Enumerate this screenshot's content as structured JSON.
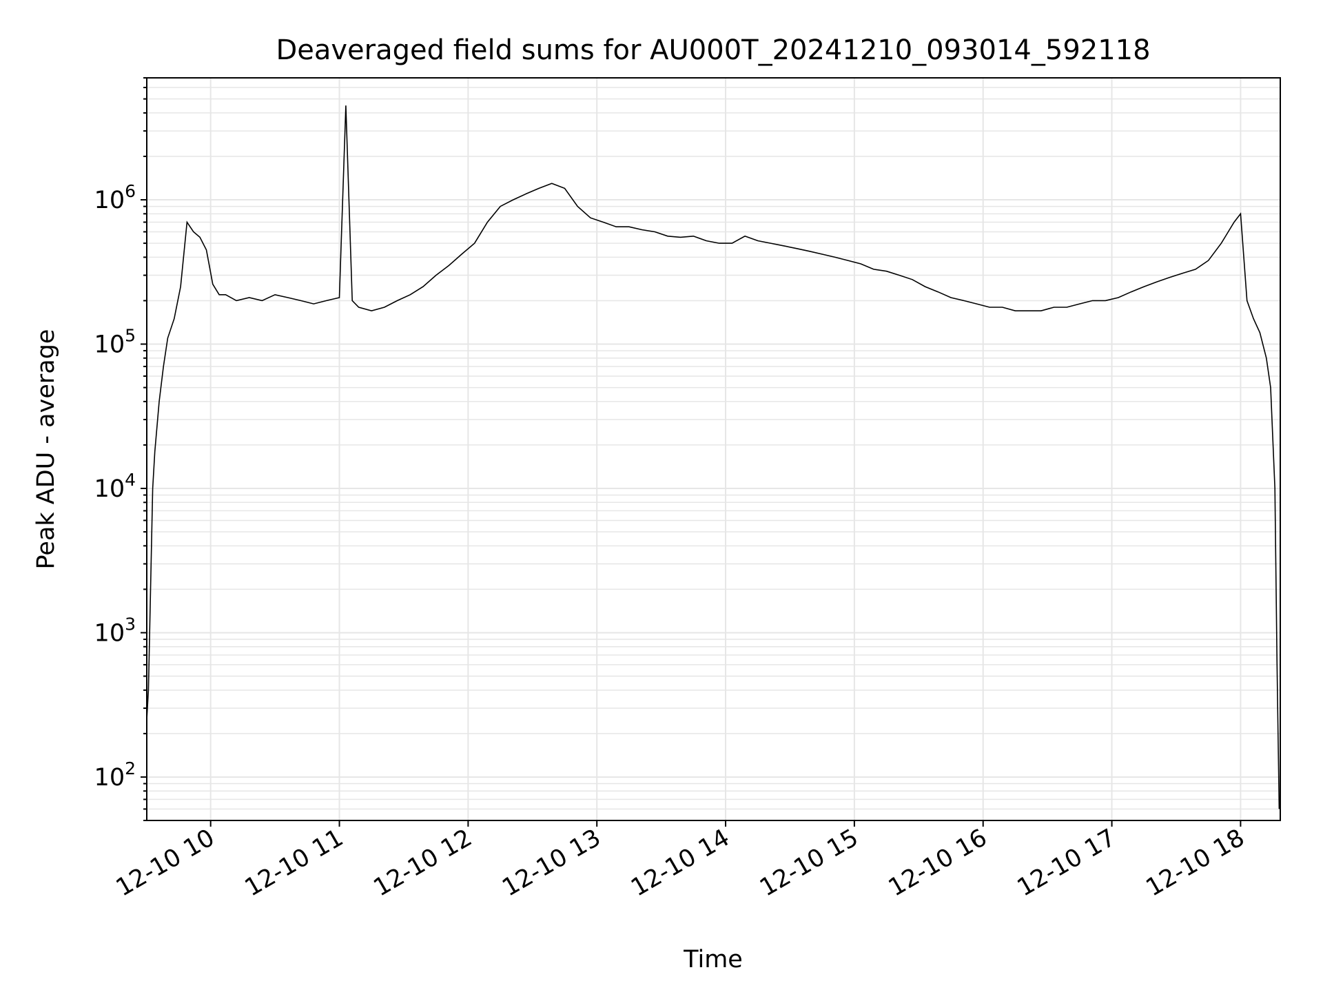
{
  "chart_data": {
    "type": "line",
    "title": "Deaveraged field sums for AU000T_20241210_093014_592118",
    "xlabel": "Time",
    "ylabel": "Peak ADU - average",
    "yscale": "log",
    "ylim": [
      50,
      7000000
    ],
    "xlim": [
      "2024-12-10 09:30:14",
      "2024-12-10 18:18:30"
    ],
    "grid": "major and minor",
    "x_tick_labels": [
      "12-10 10",
      "12-10 11",
      "12-10 12",
      "12-10 13",
      "12-10 14",
      "12-10 15",
      "12-10 16",
      "12-10 17",
      "12-10 18"
    ],
    "x_tick_times": [
      "2024-12-10 10:00",
      "2024-12-10 11:00",
      "2024-12-10 12:00",
      "2024-12-10 13:00",
      "2024-12-10 14:00",
      "2024-12-10 15:00",
      "2024-12-10 16:00",
      "2024-12-10 17:00",
      "2024-12-10 18:00"
    ],
    "y_ticks": [
      {
        "value": 100,
        "base": "10",
        "exp": "2"
      },
      {
        "value": 1000,
        "base": "10",
        "exp": "3"
      },
      {
        "value": 10000,
        "base": "10",
        "exp": "4"
      },
      {
        "value": 100000,
        "base": "10",
        "exp": "5"
      },
      {
        "value": 1000000,
        "base": "10",
        "exp": "6"
      }
    ],
    "series": [
      {
        "color": "#000000",
        "x": [
          "2024-12-10 09:30:14",
          "2024-12-10 09:31:00",
          "2024-12-10 09:32:00",
          "2024-12-10 09:33:00",
          "2024-12-10 09:34:00",
          "2024-12-10 09:36:00",
          "2024-12-10 09:38:00",
          "2024-12-10 09:40:00",
          "2024-12-10 09:43:00",
          "2024-12-10 09:46:00",
          "2024-12-10 09:49:00",
          "2024-12-10 09:52:00",
          "2024-12-10 09:55:00",
          "2024-12-10 09:58:00",
          "2024-12-10 10:01:00",
          "2024-12-10 10:04:00",
          "2024-12-10 10:07:00",
          "2024-12-10 10:12:00",
          "2024-12-10 10:18:00",
          "2024-12-10 10:24:00",
          "2024-12-10 10:30:00",
          "2024-12-10 10:36:00",
          "2024-12-10 10:42:00",
          "2024-12-10 10:48:00",
          "2024-12-10 10:54:00",
          "2024-12-10 11:00:00",
          "2024-12-10 11:03:00",
          "2024-12-10 11:06:00",
          "2024-12-10 11:09:00",
          "2024-12-10 11:15:00",
          "2024-12-10 11:21:00",
          "2024-12-10 11:27:00",
          "2024-12-10 11:33:00",
          "2024-12-10 11:39:00",
          "2024-12-10 11:45:00",
          "2024-12-10 11:51:00",
          "2024-12-10 11:57:00",
          "2024-12-10 12:03:00",
          "2024-12-10 12:09:00",
          "2024-12-10 12:15:00",
          "2024-12-10 12:21:00",
          "2024-12-10 12:27:00",
          "2024-12-10 12:33:00",
          "2024-12-10 12:39:00",
          "2024-12-10 12:45:00",
          "2024-12-10 12:51:00",
          "2024-12-10 12:57:00",
          "2024-12-10 13:03:00",
          "2024-12-10 13:09:00",
          "2024-12-10 13:15:00",
          "2024-12-10 13:21:00",
          "2024-12-10 13:27:00",
          "2024-12-10 13:33:00",
          "2024-12-10 13:39:00",
          "2024-12-10 13:45:00",
          "2024-12-10 13:51:00",
          "2024-12-10 13:57:00",
          "2024-12-10 14:03:00",
          "2024-12-10 14:09:00",
          "2024-12-10 14:15:00",
          "2024-12-10 14:21:00",
          "2024-12-10 14:27:00",
          "2024-12-10 14:33:00",
          "2024-12-10 14:39:00",
          "2024-12-10 14:45:00",
          "2024-12-10 14:51:00",
          "2024-12-10 14:57:00",
          "2024-12-10 15:03:00",
          "2024-12-10 15:09:00",
          "2024-12-10 15:15:00",
          "2024-12-10 15:21:00",
          "2024-12-10 15:27:00",
          "2024-12-10 15:33:00",
          "2024-12-10 15:39:00",
          "2024-12-10 15:45:00",
          "2024-12-10 15:51:00",
          "2024-12-10 15:57:00",
          "2024-12-10 16:03:00",
          "2024-12-10 16:09:00",
          "2024-12-10 16:15:00",
          "2024-12-10 16:21:00",
          "2024-12-10 16:27:00",
          "2024-12-10 16:33:00",
          "2024-12-10 16:39:00",
          "2024-12-10 16:45:00",
          "2024-12-10 16:51:00",
          "2024-12-10 16:57:00",
          "2024-12-10 17:03:00",
          "2024-12-10 17:09:00",
          "2024-12-10 17:15:00",
          "2024-12-10 17:21:00",
          "2024-12-10 17:27:00",
          "2024-12-10 17:33:00",
          "2024-12-10 17:39:00",
          "2024-12-10 17:45:00",
          "2024-12-10 17:51:00",
          "2024-12-10 17:57:00",
          "2024-12-10 18:00:00",
          "2024-12-10 18:03:00",
          "2024-12-10 18:06:00",
          "2024-12-10 18:09:00",
          "2024-12-10 18:12:00",
          "2024-12-10 18:14:00",
          "2024-12-10 18:16:00",
          "2024-12-10 18:17:00",
          "2024-12-10 18:18:00"
        ],
        "y": [
          250,
          400,
          2000,
          10000,
          18000,
          40000,
          70000,
          110000,
          150000,
          250000,
          700000,
          600000,
          550000,
          450000,
          260000,
          220000,
          220000,
          200000,
          210000,
          200000,
          220000,
          210000,
          200000,
          190000,
          200000,
          210000,
          4500000,
          200000,
          180000,
          170000,
          180000,
          200000,
          220000,
          250000,
          300000,
          350000,
          420000,
          500000,
          700000,
          900000,
          1000000,
          1100000,
          1200000,
          1300000,
          1200000,
          900000,
          750000,
          700000,
          650000,
          650000,
          620000,
          600000,
          560000,
          550000,
          560000,
          520000,
          500000,
          500000,
          560000,
          520000,
          500000,
          480000,
          460000,
          440000,
          420000,
          400000,
          380000,
          360000,
          330000,
          320000,
          300000,
          280000,
          250000,
          230000,
          210000,
          200000,
          190000,
          180000,
          180000,
          170000,
          170000,
          170000,
          180000,
          180000,
          190000,
          200000,
          200000,
          210000,
          230000,
          250000,
          270000,
          290000,
          310000,
          330000,
          380000,
          500000,
          700000,
          800000,
          200000,
          150000,
          120000,
          80000,
          50000,
          10000,
          600,
          60
        ]
      }
    ]
  }
}
